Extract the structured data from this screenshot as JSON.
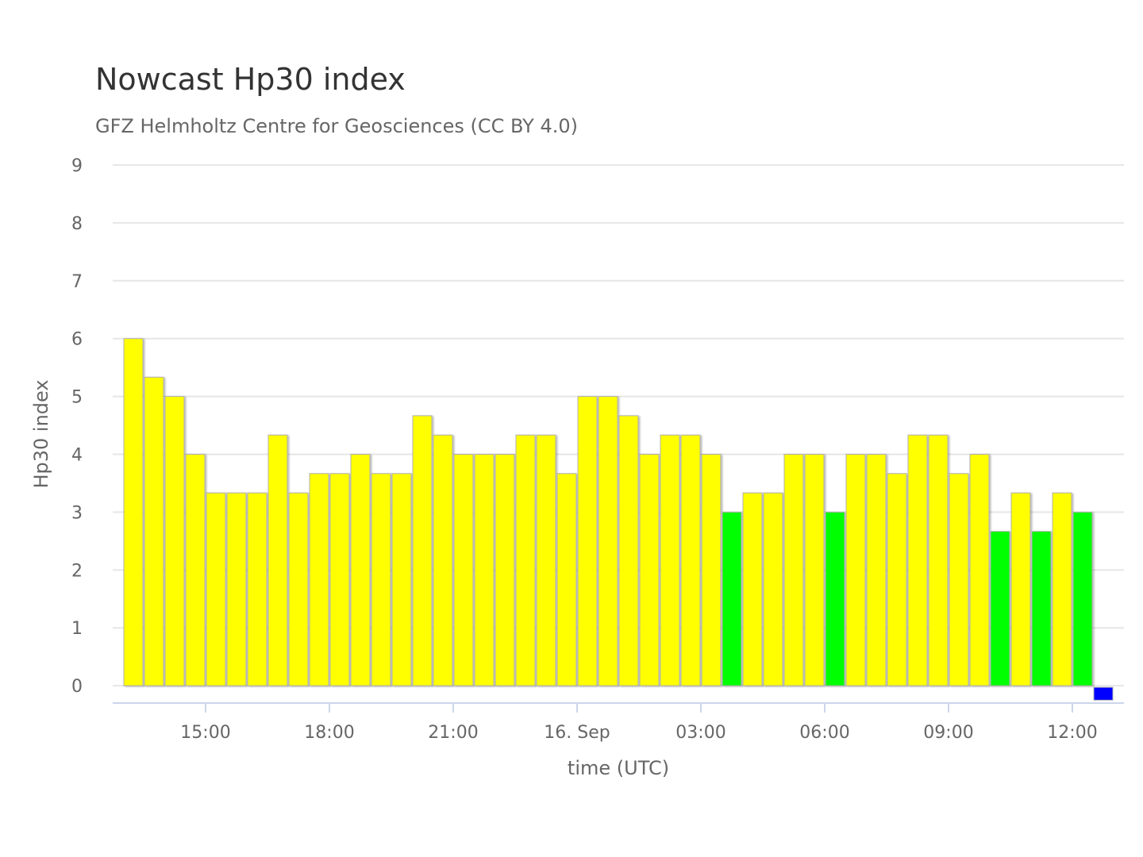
{
  "chart_data": {
    "type": "bar",
    "title": "Nowcast Hp30 index",
    "subtitle": "GFZ Helmholtz Centre for Geosciences (CC BY 4.0)",
    "xlabel": "time (UTC)",
    "ylabel": "Hp30 index",
    "ylim": [
      -0.3,
      9
    ],
    "yticks": [
      "0",
      "1",
      "2",
      "3",
      "4",
      "5",
      "6",
      "7",
      "8",
      "9"
    ],
    "x_start": "15 Sep 13:00 UTC",
    "interval_minutes": 30,
    "xlim_hours_from_start": [
      -0.25,
      24.25
    ],
    "xticks": [
      {
        "label": "15:00",
        "hour": 2
      },
      {
        "label": "18:00",
        "hour": 5
      },
      {
        "label": "21:00",
        "hour": 8
      },
      {
        "label": "16. Sep",
        "hour": 11
      },
      {
        "label": "03:00",
        "hour": 14
      },
      {
        "label": "06:00",
        "hour": 17
      },
      {
        "label": "09:00",
        "hour": 20
      },
      {
        "label": "12:00",
        "hour": 23
      }
    ],
    "grid": true,
    "values": [
      6,
      5.333,
      5,
      4,
      3.333,
      3.333,
      3.333,
      4.333,
      3.333,
      3.667,
      3.667,
      4,
      3.667,
      3.667,
      4.667,
      4.333,
      4,
      4,
      4,
      4.333,
      4.333,
      3.667,
      5,
      5,
      4.667,
      4,
      4.333,
      4.333,
      4,
      3,
      3.333,
      3.333,
      4,
      4,
      3,
      4,
      4,
      3.667,
      4.333,
      4.333,
      3.667,
      4,
      2.667,
      3.333,
      2.667,
      3.333,
      3,
      -0.25
    ],
    "colors": {
      "low": "#00ff00",
      "moderate": "#ffff00",
      "pending": "#0000ff"
    }
  }
}
